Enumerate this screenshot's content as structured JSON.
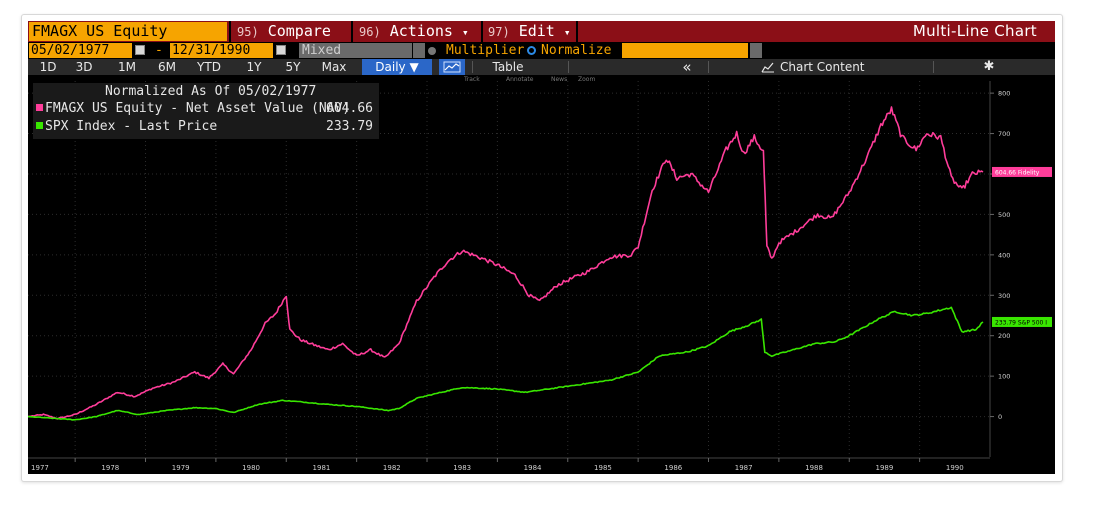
{
  "toolbar_top": {
    "ticker": "FMAGX US Equity",
    "compare_num": "95)",
    "compare_label": "Compare",
    "actions_num": "96)",
    "actions_label": "Actions",
    "edit_num": "97)",
    "edit_label": "Edit",
    "dropdown_glyph": "▾",
    "chart_type": "Multi-Line Chart"
  },
  "date_row": {
    "start_date": "05/02/1977",
    "end_date": "12/31/1990",
    "dash": "-",
    "mode": "Mixed",
    "multiplier_label": "Multiplier",
    "normalize_label": "Normalize"
  },
  "periods": [
    "1D",
    "3D",
    "1M",
    "6M",
    "YTD",
    "1Y",
    "5Y",
    "Max"
  ],
  "frequency": "Daily ▼",
  "table_label": "Table",
  "collapse_glyph": "«",
  "chart_content_label": "Chart Content",
  "settings_glyph": "✱",
  "subtools": [
    "Track",
    "Annotate",
    "News",
    "Zoom"
  ],
  "legend": {
    "header": "Normalized As Of 05/02/1977",
    "items": [
      {
        "label": "FMAGX US Equity - Net Asset Value (NAV)",
        "value": "604.66",
        "color": "#ff3d9a"
      },
      {
        "label": "SPX Index - Last Price",
        "value": "233.79",
        "color": "#39e600"
      }
    ]
  },
  "colors": {
    "accent_orange": "#f6a400",
    "title_bar_red": "#8b0f17",
    "fund_line": "#ff3d9a",
    "spx_line": "#39e600",
    "active_blue": "#2b67c8"
  },
  "chart_data": {
    "type": "line",
    "title": "",
    "xlabel": "",
    "ylabel": "",
    "xlim": [
      1977.33,
      1991.0
    ],
    "ylim": [
      -100,
      830
    ],
    "yticks": [
      0,
      100,
      200,
      300,
      400,
      500,
      600,
      700,
      800
    ],
    "xticks": [
      "1977",
      "1978",
      "1979",
      "1980",
      "1981",
      "1982",
      "1983",
      "1984",
      "1985",
      "1986",
      "1987",
      "1988",
      "1989",
      "1990"
    ],
    "grid": true,
    "legend_position": "top-left",
    "series": [
      {
        "name": "FMAGX US Equity - Net Asset Value (NAV)",
        "end_label": "604.66 Fidelity",
        "points": [
          [
            1977.33,
            0
          ],
          [
            1977.55,
            5
          ],
          [
            1977.75,
            -5
          ],
          [
            1978.0,
            5
          ],
          [
            1978.3,
            30
          ],
          [
            1978.6,
            60
          ],
          [
            1978.85,
            50
          ],
          [
            1979.1,
            70
          ],
          [
            1979.4,
            85
          ],
          [
            1979.7,
            110
          ],
          [
            1979.9,
            95
          ],
          [
            1980.1,
            130
          ],
          [
            1980.25,
            105
          ],
          [
            1980.5,
            165
          ],
          [
            1980.7,
            230
          ],
          [
            1980.85,
            255
          ],
          [
            1981.0,
            300
          ],
          [
            1981.05,
            215
          ],
          [
            1981.2,
            190
          ],
          [
            1981.35,
            180
          ],
          [
            1981.6,
            165
          ],
          [
            1981.8,
            180
          ],
          [
            1982.0,
            150
          ],
          [
            1982.2,
            165
          ],
          [
            1982.4,
            145
          ],
          [
            1982.6,
            180
          ],
          [
            1982.85,
            285
          ],
          [
            1983.1,
            345
          ],
          [
            1983.3,
            385
          ],
          [
            1983.5,
            410
          ],
          [
            1983.8,
            390
          ],
          [
            1984.0,
            375
          ],
          [
            1984.25,
            350
          ],
          [
            1984.45,
            300
          ],
          [
            1984.6,
            285
          ],
          [
            1984.85,
            325
          ],
          [
            1985.1,
            345
          ],
          [
            1985.3,
            360
          ],
          [
            1985.6,
            395
          ],
          [
            1985.9,
            400
          ],
          [
            1986.0,
            420
          ],
          [
            1986.2,
            560
          ],
          [
            1986.4,
            640
          ],
          [
            1986.55,
            590
          ],
          [
            1986.75,
            600
          ],
          [
            1987.0,
            555
          ],
          [
            1987.25,
            660
          ],
          [
            1987.4,
            700
          ],
          [
            1987.5,
            650
          ],
          [
            1987.65,
            690
          ],
          [
            1987.78,
            655
          ],
          [
            1987.83,
            420
          ],
          [
            1987.9,
            390
          ],
          [
            1988.0,
            430
          ],
          [
            1988.25,
            460
          ],
          [
            1988.55,
            500
          ],
          [
            1988.75,
            490
          ],
          [
            1989.0,
            555
          ],
          [
            1989.25,
            640
          ],
          [
            1989.45,
            720
          ],
          [
            1989.6,
            760
          ],
          [
            1989.75,
            690
          ],
          [
            1989.95,
            660
          ],
          [
            1990.1,
            700
          ],
          [
            1990.3,
            690
          ],
          [
            1990.45,
            590
          ],
          [
            1990.6,
            560
          ],
          [
            1990.75,
            600
          ],
          [
            1990.9,
            605
          ]
        ]
      },
      {
        "name": "SPX Index - Last Price",
        "end_label": "233.79 S&P 500 I",
        "points": [
          [
            1977.33,
            0
          ],
          [
            1977.75,
            -5
          ],
          [
            1978.0,
            -8
          ],
          [
            1978.3,
            0
          ],
          [
            1978.6,
            15
          ],
          [
            1978.9,
            5
          ],
          [
            1979.3,
            15
          ],
          [
            1979.7,
            22
          ],
          [
            1980.0,
            20
          ],
          [
            1980.25,
            10
          ],
          [
            1980.6,
            30
          ],
          [
            1980.95,
            40
          ],
          [
            1981.3,
            35
          ],
          [
            1981.6,
            30
          ],
          [
            1982.0,
            25
          ],
          [
            1982.45,
            15
          ],
          [
            1982.6,
            20
          ],
          [
            1982.85,
            45
          ],
          [
            1983.2,
            60
          ],
          [
            1983.5,
            72
          ],
          [
            1983.8,
            70
          ],
          [
            1984.0,
            68
          ],
          [
            1984.4,
            60
          ],
          [
            1984.8,
            70
          ],
          [
            1985.2,
            80
          ],
          [
            1985.6,
            90
          ],
          [
            1986.0,
            110
          ],
          [
            1986.3,
            150
          ],
          [
            1986.7,
            160
          ],
          [
            1987.0,
            175
          ],
          [
            1987.3,
            210
          ],
          [
            1987.55,
            225
          ],
          [
            1987.75,
            240
          ],
          [
            1987.8,
            160
          ],
          [
            1987.9,
            150
          ],
          [
            1988.2,
            165
          ],
          [
            1988.5,
            180
          ],
          [
            1988.8,
            185
          ],
          [
            1989.0,
            200
          ],
          [
            1989.4,
            240
          ],
          [
            1989.65,
            260
          ],
          [
            1989.9,
            250
          ],
          [
            1990.1,
            255
          ],
          [
            1990.45,
            270
          ],
          [
            1990.6,
            210
          ],
          [
            1990.8,
            215
          ],
          [
            1990.9,
            234
          ]
        ]
      }
    ]
  }
}
